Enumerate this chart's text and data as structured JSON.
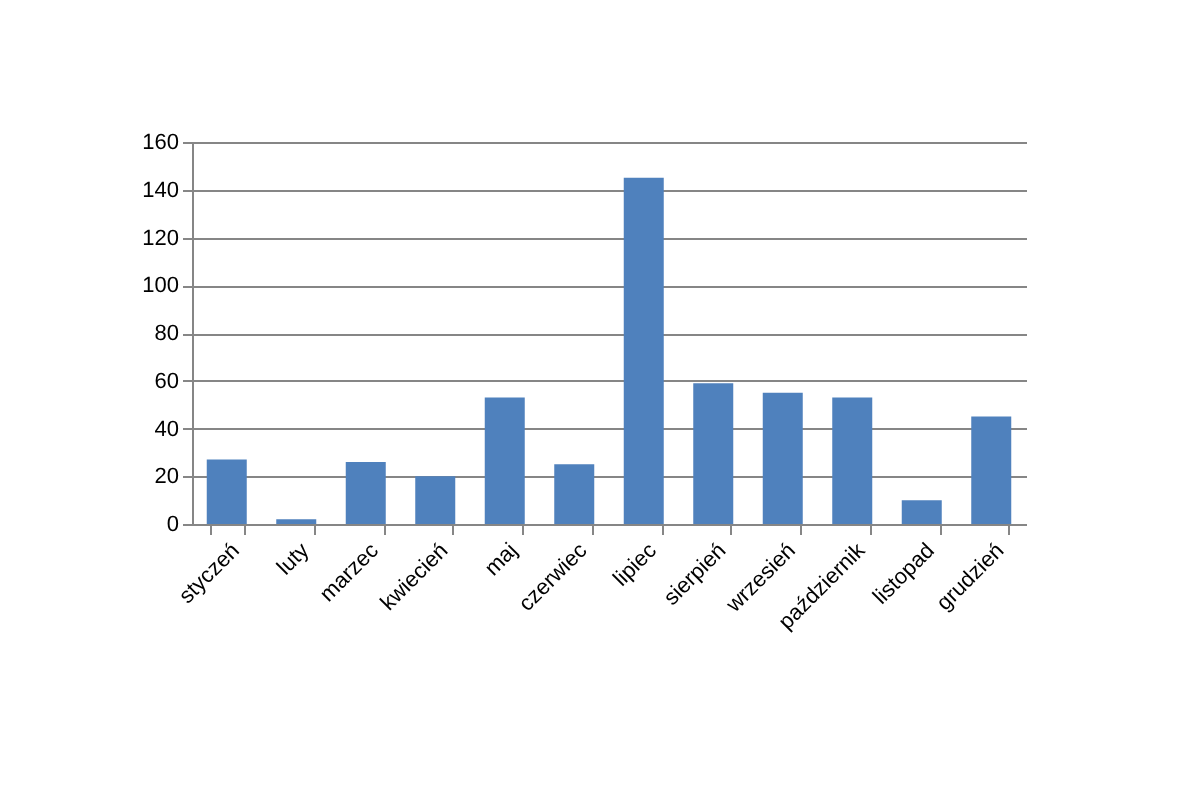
{
  "chart_data": {
    "type": "bar",
    "categories": [
      "styczeń",
      "luty",
      "marzec",
      "kwiecień",
      "maj",
      "czerwiec",
      "lipiec",
      "sierpień",
      "wrzesień",
      "październik",
      "listopad",
      "grudzień"
    ],
    "values": [
      27,
      2,
      26,
      20,
      53,
      25,
      145,
      59,
      55,
      53,
      10,
      45
    ],
    "color": "#4f81bd",
    "ylim": [
      0,
      160
    ],
    "yticks": [
      0,
      20,
      40,
      60,
      80,
      100,
      120,
      140,
      160
    ],
    "grid": "y"
  }
}
